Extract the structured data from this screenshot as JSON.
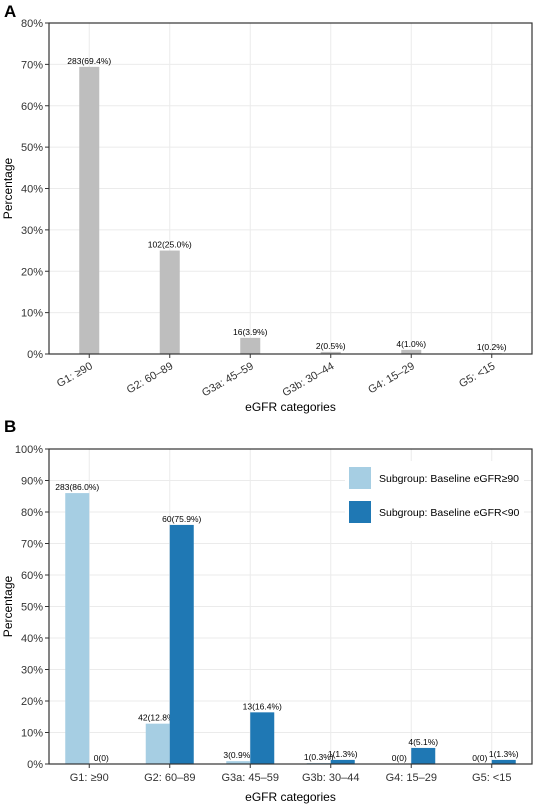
{
  "chart_data": [
    {
      "type": "bar",
      "panel": "A",
      "title": "",
      "xlabel": "eGFR categories",
      "ylabel": "Percentage",
      "ylim": [
        0,
        80
      ],
      "yticks": [
        "0%",
        "10%",
        "20%",
        "30%",
        "40%",
        "50%",
        "60%",
        "70%",
        "80%"
      ],
      "categories": [
        "G1: ≥90",
        "G2: 60–89",
        "G3a: 45–59",
        "G3b: 30–44",
        "G4: 15–29",
        "G5: <15"
      ],
      "grid": true,
      "series": [
        {
          "values": [
            69.4,
            25.0,
            3.9,
            0.5,
            1.0,
            0.2
          ],
          "labels": [
            "283(69.4%)",
            "102(25.0%)",
            "16(3.9%)",
            "2(0.5%)",
            "4(1.0%)",
            "1(0.2%)"
          ],
          "color": "#bebebe"
        }
      ]
    },
    {
      "type": "bar",
      "panel": "B",
      "title": "",
      "xlabel": "eGFR categories",
      "ylabel": "Percentage",
      "ylim": [
        0,
        100
      ],
      "yticks": [
        "0%",
        "10%",
        "20%",
        "30%",
        "40%",
        "50%",
        "60%",
        "70%",
        "80%",
        "90%",
        "100%"
      ],
      "categories": [
        "G1: ≥90",
        "G2: 60–89",
        "G3a: 45–59",
        "G3b: 30–44",
        "G4: 15–29",
        "G5: <15"
      ],
      "grid": true,
      "legend_position": "top-right",
      "series": [
        {
          "name": "Subgroup: Baseline eGFR≥90",
          "values": [
            86.0,
            12.8,
            0.9,
            0.3,
            0,
            0
          ],
          "labels": [
            "283(86.0%)",
            "42(12.8%)",
            "3(0.9%)",
            "1(0.3%)",
            "0(0)",
            "0(0)"
          ],
          "color": "#a6cee3"
        },
        {
          "name": "Subgroup: Baseline eGFR<90",
          "values": [
            0,
            75.9,
            16.4,
            1.3,
            5.1,
            1.3
          ],
          "labels": [
            "0(0)",
            "60(75.9%)",
            "13(16.4%)",
            "1(1.3%)",
            "4(5.1%)",
            "1(1.3%)"
          ],
          "color": "#1f78b4"
        }
      ]
    }
  ],
  "panel_letters": [
    "A",
    "B"
  ]
}
